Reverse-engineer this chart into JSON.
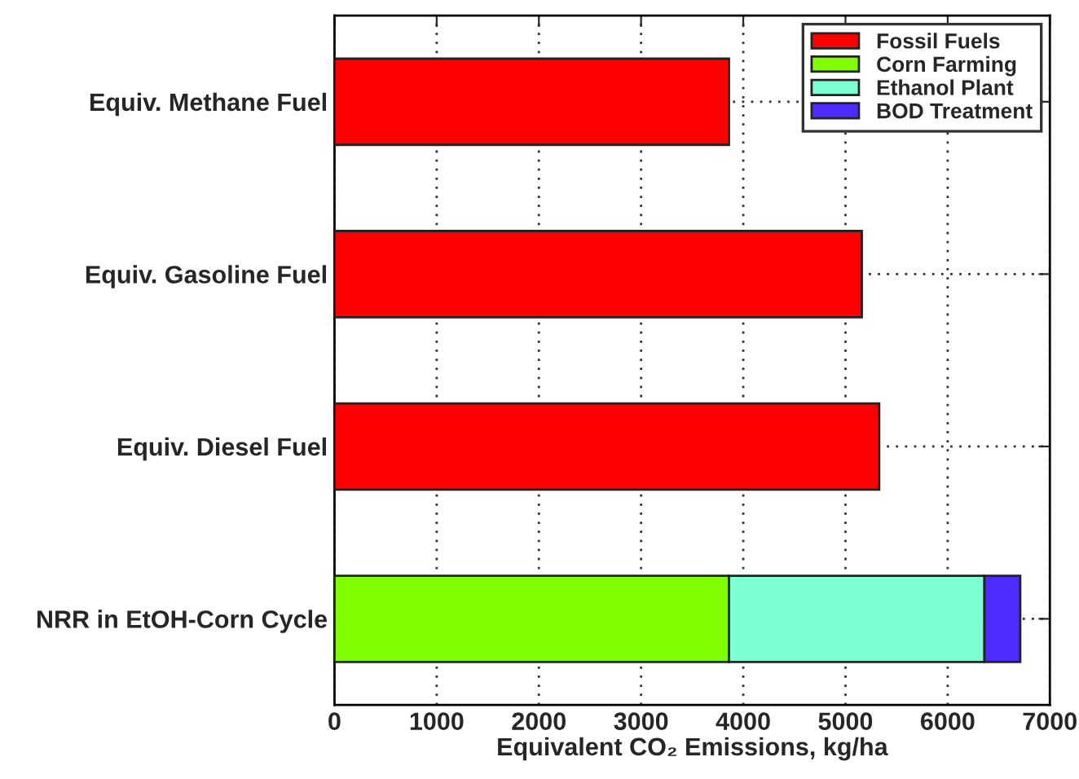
{
  "chart_data": {
    "type": "bar",
    "orientation": "horizontal",
    "stacked": true,
    "categories": [
      "Equiv. Methane Fuel",
      "Equiv. Gasoline Fuel",
      "Equiv. Diesel Fuel",
      "NRR in EtOH-Corn Cycle"
    ],
    "series": [
      {
        "name": "Fossil Fuels",
        "color": "#ff0000",
        "values": [
          3860,
          5160,
          5330,
          null
        ]
      },
      {
        "name": "Corn Farming",
        "color": "#80ff00",
        "values": [
          null,
          null,
          null,
          3860
        ]
      },
      {
        "name": "Ethanol Plant",
        "color": "#7fffd4",
        "values": [
          null,
          null,
          null,
          2500
        ]
      },
      {
        "name": "BOD Treatment",
        "color": "#4c2cff",
        "values": [
          null,
          null,
          null,
          350
        ]
      }
    ],
    "xlabel": "Equivalent CO₂ Emissions, kg/ha",
    "xlim": [
      0,
      7000
    ],
    "xticks": [
      0,
      1000,
      2000,
      3000,
      4000,
      5000,
      6000,
      7000
    ],
    "grid": true,
    "legend": "top right"
  }
}
